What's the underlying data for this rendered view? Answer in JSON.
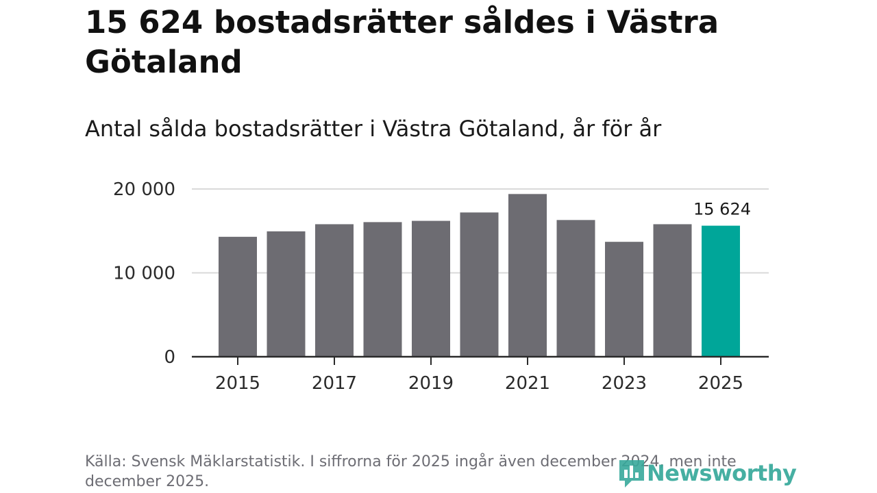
{
  "header": {
    "title": "15 624 bostadsrätter såldes i Västra Götaland",
    "subtitle": "Antal sålda bostadsrätter i Västra Götaland, år för år"
  },
  "footer": {
    "source": "Källa: Svensk Mäklarstatistik. I siffrorna för 2025 ingår även december 2024, men inte december 2025.",
    "logo_text": "Newsworthy"
  },
  "colors": {
    "bar": "#6d6c72",
    "highlight": "#00a699",
    "axis": "#2a2a2a",
    "grid": "#d9d9d9",
    "brand": "#37a99b"
  },
  "chart_data": {
    "type": "bar",
    "title": "",
    "xlabel": "",
    "ylabel": "",
    "categories": [
      "2015",
      "2016",
      "2017",
      "2018",
      "2019",
      "2020",
      "2021",
      "2022",
      "2023",
      "2024",
      "2025"
    ],
    "values": [
      14300,
      14950,
      15800,
      16050,
      16200,
      17200,
      19400,
      16300,
      13700,
      15800,
      15624
    ],
    "highlight_index": 10,
    "highlight_label": "15 624",
    "ylim": [
      0,
      20000
    ],
    "yticks": [
      0,
      10000,
      20000
    ],
    "ytick_labels": [
      "0",
      "10 000",
      "20 000"
    ],
    "xtick_labels": [
      "2015",
      "2017",
      "2019",
      "2021",
      "2023",
      "2025"
    ],
    "xtick_categories": [
      "2015",
      "2017",
      "2019",
      "2021",
      "2023",
      "2025"
    ],
    "grid": true,
    "legend": "none"
  }
}
